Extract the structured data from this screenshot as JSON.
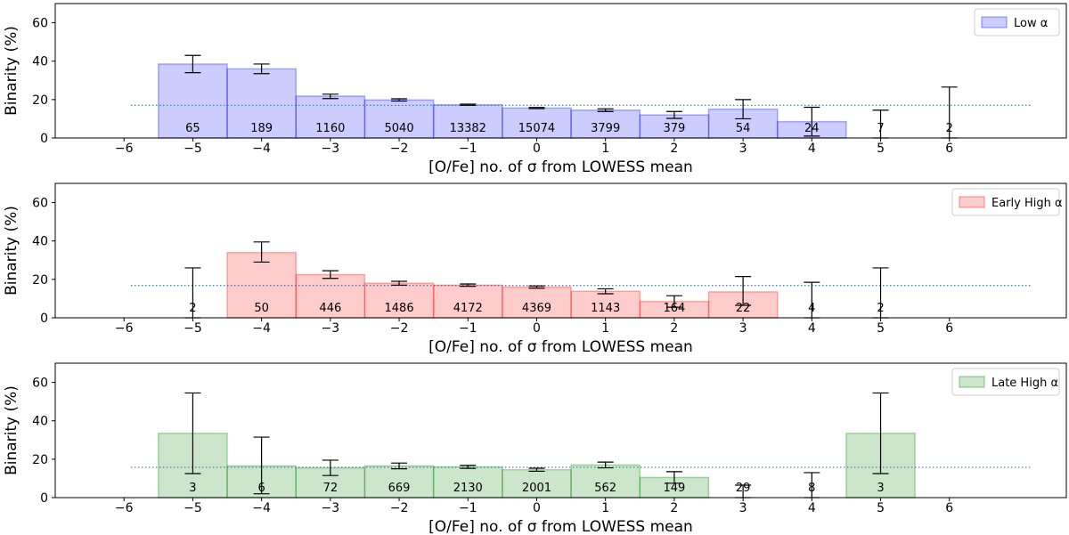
{
  "chart_data": [
    {
      "type": "bar",
      "legend": "Low α",
      "legend_position": "top-right",
      "color": "#0000ff",
      "xlabel": "[O/Fe] no. of σ from LOWESS mean",
      "ylabel": "Binarity (%)",
      "xlim": [
        -7,
        7.7
      ],
      "ylim": [
        0,
        70
      ],
      "xticks": [
        "−6",
        "−5",
        "−4",
        "−3",
        "−2",
        "−1",
        "0",
        "1",
        "2",
        "3",
        "4",
        "5",
        "6"
      ],
      "xtick_values": [
        -6,
        -5,
        -4,
        -3,
        -2,
        -1,
        0,
        1,
        2,
        3,
        4,
        5,
        6
      ],
      "yticks": [
        "0",
        "20",
        "40",
        "60"
      ],
      "ytick_values": [
        0,
        20,
        40,
        60
      ],
      "mean_line": 17,
      "bars": [
        {
          "x": -5,
          "value": 38.5,
          "err_low": 34,
          "err_high": 43,
          "count": "65"
        },
        {
          "x": -4,
          "value": 36,
          "err_low": 33.5,
          "err_high": 38.5,
          "count": "189"
        },
        {
          "x": -3,
          "value": 21.8,
          "err_low": 20.5,
          "err_high": 22.8,
          "count": "1160"
        },
        {
          "x": -2,
          "value": 19.8,
          "err_low": 19.2,
          "err_high": 20.4,
          "count": "5040"
        },
        {
          "x": -1,
          "value": 17.3,
          "err_low": 17,
          "err_high": 17.6,
          "count": "13382"
        },
        {
          "x": 0,
          "value": 15.6,
          "err_low": 15.3,
          "err_high": 15.9,
          "count": "15074"
        },
        {
          "x": 1,
          "value": 14.5,
          "err_low": 13.8,
          "err_high": 15.2,
          "count": "3799"
        },
        {
          "x": 2,
          "value": 12,
          "err_low": 10.2,
          "err_high": 13.8,
          "count": "379"
        },
        {
          "x": 3,
          "value": 15,
          "err_low": 10,
          "err_high": 20,
          "count": "54"
        },
        {
          "x": 4,
          "value": 8.5,
          "err_low": 1,
          "err_high": 16,
          "count": "24"
        },
        {
          "x": 5,
          "value": 0,
          "err_low": 0,
          "err_high": 14.5,
          "count": "7"
        },
        {
          "x": 6,
          "value": 0,
          "err_low": 0,
          "err_high": 26.5,
          "count": "2"
        }
      ]
    },
    {
      "type": "bar",
      "legend": "Early High α",
      "legend_position": "top-right",
      "color": "#ff0000",
      "xlabel": "[O/Fe] no. of σ from LOWESS mean",
      "ylabel": "Binarity (%)",
      "xlim": [
        -7,
        7.7
      ],
      "ylim": [
        0,
        70
      ],
      "xticks": [
        "−6",
        "−5",
        "−4",
        "−3",
        "−2",
        "−1",
        "0",
        "1",
        "2",
        "3",
        "4",
        "5",
        "6"
      ],
      "xtick_values": [
        -6,
        -5,
        -4,
        -3,
        -2,
        -1,
        0,
        1,
        2,
        3,
        4,
        5,
        6
      ],
      "yticks": [
        "0",
        "20",
        "40",
        "60"
      ],
      "ytick_values": [
        0,
        20,
        40,
        60
      ],
      "mean_line": 16.8,
      "bars": [
        {
          "x": -5,
          "value": 0,
          "err_low": 0,
          "err_high": 26,
          "count": "2"
        },
        {
          "x": -4,
          "value": 34,
          "err_low": 29,
          "err_high": 39.5,
          "count": "50"
        },
        {
          "x": -3,
          "value": 22.5,
          "err_low": 20.5,
          "err_high": 24.5,
          "count": "446"
        },
        {
          "x": -2,
          "value": 18,
          "err_low": 17,
          "err_high": 19,
          "count": "1486"
        },
        {
          "x": -1,
          "value": 17,
          "err_low": 16.4,
          "err_high": 17.6,
          "count": "4172"
        },
        {
          "x": 0,
          "value": 16,
          "err_low": 15.4,
          "err_high": 16.6,
          "count": "4369"
        },
        {
          "x": 1,
          "value": 13.8,
          "err_low": 12.5,
          "err_high": 15.1,
          "count": "1143"
        },
        {
          "x": 2,
          "value": 8.5,
          "err_low": 5.5,
          "err_high": 11.5,
          "count": "164"
        },
        {
          "x": 3,
          "value": 13.5,
          "err_low": 6.5,
          "err_high": 21.5,
          "count": "22"
        },
        {
          "x": 4,
          "value": 0,
          "err_low": 0,
          "err_high": 18.5,
          "count": "4"
        },
        {
          "x": 5,
          "value": 0,
          "err_low": 0,
          "err_high": 26,
          "count": "2"
        },
        {
          "x": 6,
          "value": 0,
          "err_low": 0,
          "err_high": 0,
          "count": ""
        }
      ]
    },
    {
      "type": "bar",
      "legend": "Late High α",
      "legend_position": "top-right",
      "color": "#008000",
      "xlabel": "[O/Fe] no. of σ from LOWESS mean",
      "ylabel": "Binarity (%)",
      "xlim": [
        -7,
        7.7
      ],
      "ylim": [
        0,
        70
      ],
      "xticks": [
        "−6",
        "−5",
        "−4",
        "−3",
        "−2",
        "−1",
        "0",
        "1",
        "2",
        "3",
        "4",
        "5",
        "6"
      ],
      "xtick_values": [
        -6,
        -5,
        -4,
        -3,
        -2,
        -1,
        0,
        1,
        2,
        3,
        4,
        5,
        6
      ],
      "yticks": [
        "0",
        "20",
        "40",
        "60"
      ],
      "ytick_values": [
        0,
        20,
        40,
        60
      ],
      "mean_line": 15.8,
      "bars": [
        {
          "x": -5,
          "value": 33.5,
          "err_low": 12.5,
          "err_high": 54.5,
          "count": "3"
        },
        {
          "x": -4,
          "value": 16.5,
          "err_low": 2,
          "err_high": 31.5,
          "count": "6"
        },
        {
          "x": -3,
          "value": 15.5,
          "err_low": 11.5,
          "err_high": 19.5,
          "count": "72"
        },
        {
          "x": -2,
          "value": 16.5,
          "err_low": 15,
          "err_high": 18,
          "count": "669"
        },
        {
          "x": -1,
          "value": 16,
          "err_low": 15.2,
          "err_high": 16.8,
          "count": "2130"
        },
        {
          "x": 0,
          "value": 14.5,
          "err_low": 13.7,
          "err_high": 15.3,
          "count": "2001"
        },
        {
          "x": 1,
          "value": 17,
          "err_low": 15.5,
          "err_high": 18.5,
          "count": "562"
        },
        {
          "x": 2,
          "value": 10.5,
          "err_low": 7.5,
          "err_high": 13.5,
          "count": "149"
        },
        {
          "x": 3,
          "value": 0,
          "err_low": 0,
          "err_high": 6.5,
          "count": "29"
        },
        {
          "x": 4,
          "value": 0,
          "err_low": 0,
          "err_high": 13,
          "count": "8"
        },
        {
          "x": 5,
          "value": 33.5,
          "err_low": 12.5,
          "err_high": 54.5,
          "count": "3"
        },
        {
          "x": 6,
          "value": 0,
          "err_low": 0,
          "err_high": 0,
          "count": ""
        }
      ]
    }
  ]
}
